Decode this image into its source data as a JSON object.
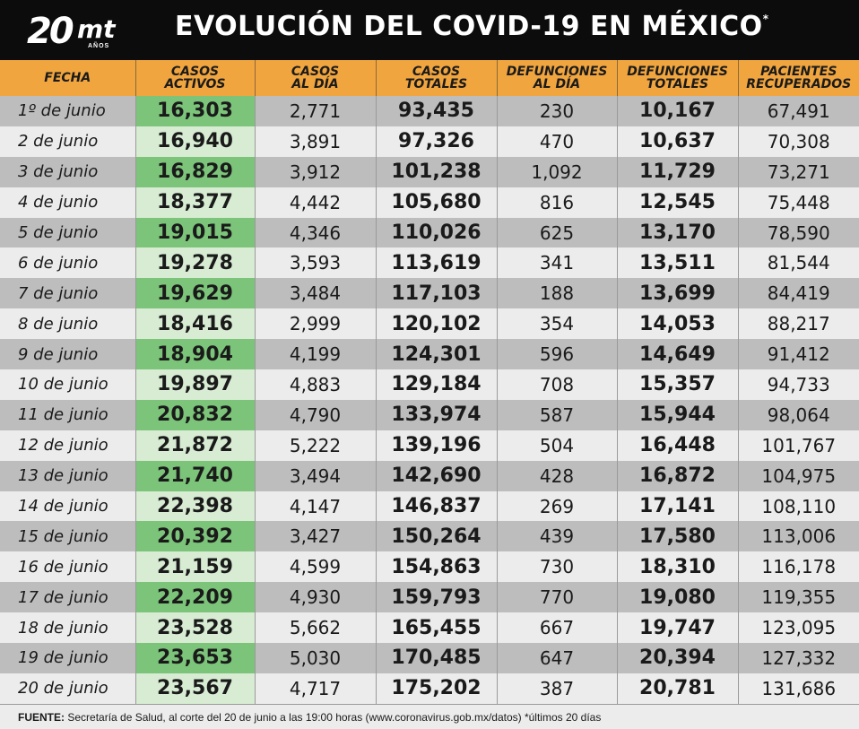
{
  "header": {
    "logo_number": "20",
    "logo_brand": "mt",
    "logo_sub": "AÑOS",
    "title": "EVOLUCIÓN DEL COVID-19 EN MÉXICO",
    "title_mark": "*"
  },
  "columns": [
    "FECHA",
    "CASOS ACTIVOS",
    "CASOS AL DÍA",
    "CASOS TOTALES",
    "DEFUNCIONES AL DÍA",
    "DEFUNCIONES TOTALES",
    "PACIENTES RECUPERADOS"
  ],
  "rows": [
    [
      "1º de junio",
      "16,303",
      "2,771",
      "93,435",
      "230",
      "10,167",
      "67,491"
    ],
    [
      "2 de junio",
      "16,940",
      "3,891",
      "97,326",
      "470",
      "10,637",
      "70,308"
    ],
    [
      "3 de junio",
      "16,829",
      "3,912",
      "101,238",
      "1,092",
      "11,729",
      "73,271"
    ],
    [
      "4 de junio",
      "18,377",
      "4,442",
      "105,680",
      "816",
      "12,545",
      "75,448"
    ],
    [
      "5 de junio",
      "19,015",
      "4,346",
      "110,026",
      "625",
      "13,170",
      "78,590"
    ],
    [
      "6 de junio",
      "19,278",
      "3,593",
      "113,619",
      "341",
      "13,511",
      "81,544"
    ],
    [
      "7 de junio",
      "19,629",
      "3,484",
      "117,103",
      "188",
      "13,699",
      "84,419"
    ],
    [
      "8 de junio",
      "18,416",
      "2,999",
      "120,102",
      "354",
      "14,053",
      "88,217"
    ],
    [
      "9 de junio",
      "18,904",
      "4,199",
      "124,301",
      "596",
      "14,649",
      "91,412"
    ],
    [
      "10 de junio",
      "19,897",
      "4,883",
      "129,184",
      "708",
      "15,357",
      "94,733"
    ],
    [
      "11 de junio",
      "20,832",
      "4,790",
      "133,974",
      "587",
      "15,944",
      "98,064"
    ],
    [
      "12 de junio",
      "21,872",
      "5,222",
      "139,196",
      "504",
      "16,448",
      "101,767"
    ],
    [
      "13 de junio",
      "21,740",
      "3,494",
      "142,690",
      "428",
      "16,872",
      "104,975"
    ],
    [
      "14 de junio",
      "22,398",
      "4,147",
      "146,837",
      "269",
      "17,141",
      "108,110"
    ],
    [
      "15 de junio",
      "20,392",
      "3,427",
      "150,264",
      "439",
      "17,580",
      "113,006"
    ],
    [
      "16 de junio",
      "21,159",
      "4,599",
      "154,863",
      "730",
      "18,310",
      "116,178"
    ],
    [
      "17 de junio",
      "22,209",
      "4,930",
      "159,793",
      "770",
      "19,080",
      "119,355"
    ],
    [
      "18 de junio",
      "23,528",
      "5,662",
      "165,455",
      "667",
      "19,747",
      "123,095"
    ],
    [
      "19 de junio",
      "23,653",
      "5,030",
      "170,485",
      "647",
      "20,394",
      "127,332"
    ],
    [
      "20 de junio",
      "23,567",
      "4,717",
      "175,202",
      "387",
      "20,781",
      "131,686"
    ]
  ],
  "footer": {
    "label": "FUENTE:",
    "text": "Secretaría de Salud, al corte del 20 de junio a las 19:00 horas (www.coronavirus.gob.mx/datos) *últimos 20 días"
  },
  "chart_data": {
    "type": "table",
    "title": "EVOLUCIÓN DEL COVID-19 EN MÉXICO",
    "categories": [
      "1º de junio",
      "2 de junio",
      "3 de junio",
      "4 de junio",
      "5 de junio",
      "6 de junio",
      "7 de junio",
      "8 de junio",
      "9 de junio",
      "10 de junio",
      "11 de junio",
      "12 de junio",
      "13 de junio",
      "14 de junio",
      "15 de junio",
      "16 de junio",
      "17 de junio",
      "18 de junio",
      "19 de junio",
      "20 de junio"
    ],
    "series": [
      {
        "name": "CASOS ACTIVOS",
        "values": [
          16303,
          16940,
          16829,
          18377,
          19015,
          19278,
          19629,
          18416,
          18904,
          19897,
          20832,
          21872,
          21740,
          22398,
          20392,
          21159,
          22209,
          23528,
          23653,
          23567
        ]
      },
      {
        "name": "CASOS AL DÍA",
        "values": [
          2771,
          3891,
          3912,
          4442,
          4346,
          3593,
          3484,
          2999,
          4199,
          4883,
          4790,
          5222,
          3494,
          4147,
          3427,
          4599,
          4930,
          5662,
          5030,
          4717
        ]
      },
      {
        "name": "CASOS TOTALES",
        "values": [
          93435,
          97326,
          101238,
          105680,
          110026,
          113619,
          117103,
          120102,
          124301,
          129184,
          133974,
          139196,
          142690,
          146837,
          150264,
          154863,
          159793,
          165455,
          170485,
          175202
        ]
      },
      {
        "name": "DEFUNCIONES AL DÍA",
        "values": [
          230,
          470,
          1092,
          816,
          625,
          341,
          188,
          354,
          596,
          708,
          587,
          504,
          428,
          269,
          439,
          730,
          770,
          667,
          647,
          387
        ]
      },
      {
        "name": "DEFUNCIONES TOTALES",
        "values": [
          10167,
          10637,
          11729,
          12545,
          13170,
          13511,
          13699,
          14053,
          14649,
          15357,
          15944,
          16448,
          16872,
          17141,
          17580,
          18310,
          19080,
          19747,
          20394,
          20781
        ]
      },
      {
        "name": "PACIENTES RECUPERADOS",
        "values": [
          67491,
          70308,
          73271,
          75448,
          78590,
          81544,
          84419,
          88217,
          91412,
          94733,
          98064,
          101767,
          104975,
          108110,
          113006,
          116178,
          119355,
          123095,
          127332,
          131686
        ]
      }
    ]
  },
  "colors": {
    "header_bg": "#0c0c0c",
    "column_header_bg": "#f0a53f",
    "row_dark": "#bdbdbd",
    "row_light": "#ececec",
    "active_dark": "#7cc47a",
    "active_light": "#d7ecd3"
  }
}
